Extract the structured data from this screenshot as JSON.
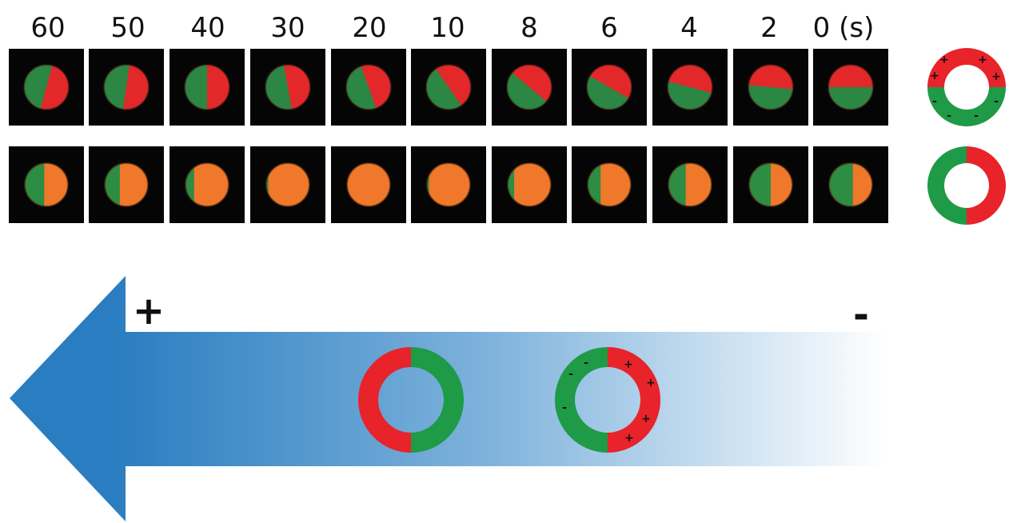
{
  "time_labels": [
    "60",
    "50",
    "40",
    "30",
    "20",
    "10",
    "8",
    "6",
    "4",
    "2",
    "0 (s)"
  ],
  "colors": {
    "red": "#e8232a",
    "green": "#1f9a47",
    "arrow_blue": "#2a7dc0",
    "arrow_fade": "#ffffff",
    "frame_bg": "#050505"
  },
  "field_arrow": {
    "positive_sign": "+",
    "negative_sign": "-"
  },
  "ring_signs": {
    "plus": "+",
    "minus": "-"
  },
  "rows": [
    {
      "name": "top-row",
      "frames": [
        {
          "split_angle": -15,
          "left": "green",
          "right": "red"
        },
        {
          "split_angle": -8,
          "left": "green",
          "right": "red"
        },
        {
          "split_angle": 0,
          "left": "green",
          "right": "red"
        },
        {
          "split_angle": 10,
          "left": "green",
          "right": "red"
        },
        {
          "split_angle": 20,
          "left": "green",
          "right": "red"
        },
        {
          "split_angle": 35,
          "left": "green",
          "right": "red"
        },
        {
          "split_angle": 50,
          "left": "green",
          "right": "red"
        },
        {
          "split_angle": 60,
          "left": "green",
          "right": "red"
        },
        {
          "split_angle": 75,
          "left": "green",
          "right": "red"
        },
        {
          "split_angle": 85,
          "left": "green",
          "right": "red"
        },
        {
          "split_angle": 90,
          "left": "green",
          "right": "red"
        }
      ]
    },
    {
      "name": "bottom-row",
      "frames": [
        {
          "split_angle": 0,
          "left": "green",
          "right": "orange",
          "green_frac": 0.45
        },
        {
          "split_angle": 0,
          "left": "green",
          "right": "orange",
          "green_frac": 0.35
        },
        {
          "split_angle": 0,
          "left": "green",
          "right": "orange",
          "green_frac": 0.2
        },
        {
          "split_angle": 0,
          "left": "green",
          "right": "orange",
          "green_frac": 0.05
        },
        {
          "split_angle": 0,
          "left": "green",
          "right": "orange",
          "green_frac": 0.0
        },
        {
          "split_angle": 0,
          "left": "green",
          "right": "orange",
          "green_frac": 0.05
        },
        {
          "split_angle": 0,
          "left": "green",
          "right": "orange",
          "green_frac": 0.15
        },
        {
          "split_angle": 0,
          "left": "green",
          "right": "orange",
          "green_frac": 0.3
        },
        {
          "split_angle": 0,
          "left": "green",
          "right": "orange",
          "green_frac": 0.4
        },
        {
          "split_angle": 0,
          "left": "green",
          "right": "orange",
          "green_frac": 0.5
        },
        {
          "split_angle": 0,
          "left": "green",
          "right": "orange",
          "green_frac": 0.55
        }
      ]
    }
  ]
}
